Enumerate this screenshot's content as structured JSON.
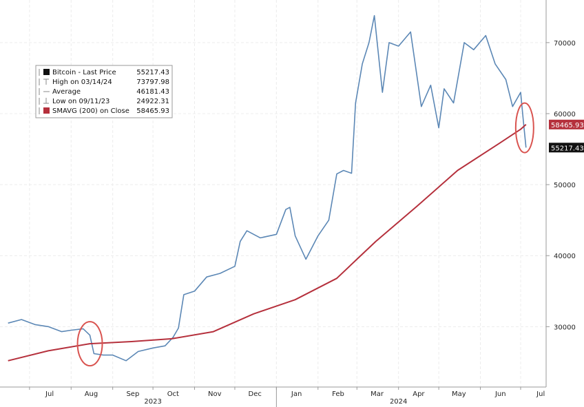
{
  "chart_data": {
    "type": "line",
    "y_ticks": [
      "70000",
      "60000",
      "50000",
      "40000",
      "30000"
    ],
    "y_tick_values": [
      70000,
      60000,
      50000,
      40000,
      30000
    ],
    "ylim": [
      21500,
      76000
    ],
    "x_labels": [
      "Jul",
      "Aug",
      "Sep",
      "Oct",
      "Nov",
      "Dec",
      "Jan",
      "Feb",
      "Mar",
      "Apr",
      "May",
      "Jun",
      "Jul"
    ],
    "x_label_dates": [
      "2023-07-01",
      "2023-08-01",
      "2023-09-01",
      "2023-10-01",
      "2023-11-01",
      "2023-12-01",
      "2024-01-01",
      "2024-02-01",
      "2024-03-01",
      "2024-04-01",
      "2024-05-01",
      "2024-06-01",
      "2024-07-01"
    ],
    "years": [
      "2023",
      "2024"
    ],
    "legend": [
      {
        "label": "Bitcoin - Last Price",
        "value": "55217.43"
      },
      {
        "label": "High on 03/14/24",
        "value": "73797.98"
      },
      {
        "label": "Average",
        "value": "46181.43"
      },
      {
        "label": "Low on 09/11/23",
        "value": "24922.31"
      },
      {
        "label": "SMAVG (200)  on Close",
        "value": "58465.93"
      }
    ],
    "last_price_tag": "55217.43",
    "sma_tag": "58465.93",
    "series": [
      {
        "name": "Bitcoin - Last Price",
        "color": "#5b87b5",
        "x": [
          "2023-06-15",
          "2023-06-25",
          "2023-07-05",
          "2023-07-15",
          "2023-07-25",
          "2023-08-01",
          "2023-08-10",
          "2023-08-15",
          "2023-08-18",
          "2023-08-25",
          "2023-09-01",
          "2023-09-11",
          "2023-09-20",
          "2023-10-01",
          "2023-10-10",
          "2023-10-16",
          "2023-10-20",
          "2023-10-24",
          "2023-11-01",
          "2023-11-10",
          "2023-11-20",
          "2023-12-01",
          "2023-12-05",
          "2023-12-10",
          "2023-12-20",
          "2024-01-01",
          "2024-01-08",
          "2024-01-11",
          "2024-01-15",
          "2024-01-23",
          "2024-02-01",
          "2024-02-09",
          "2024-02-15",
          "2024-02-20",
          "2024-02-26",
          "2024-02-29",
          "2024-03-05",
          "2024-03-10",
          "2024-03-14",
          "2024-03-20",
          "2024-03-25",
          "2024-04-01",
          "2024-04-10",
          "2024-04-18",
          "2024-04-25",
          "2024-05-01",
          "2024-05-05",
          "2024-05-12",
          "2024-05-20",
          "2024-05-27",
          "2024-06-05",
          "2024-06-12",
          "2024-06-20",
          "2024-06-25",
          "2024-07-01",
          "2024-07-03",
          "2024-07-05"
        ],
        "values": [
          30500,
          31000,
          30300,
          30000,
          29300,
          29500,
          29700,
          28800,
          26200,
          26000,
          26000,
          25200,
          26500,
          27000,
          27300,
          28500,
          29800,
          34500,
          35000,
          37000,
          37500,
          38500,
          42000,
          43500,
          42500,
          43000,
          46500,
          46800,
          42800,
          39500,
          42800,
          45000,
          51500,
          52000,
          51600,
          61500,
          67000,
          70000,
          73797.98,
          63000,
          70000,
          69500,
          71500,
          61000,
          64000,
          58000,
          63500,
          61500,
          70000,
          69000,
          71000,
          67000,
          64800,
          61000,
          63000,
          59000,
          55217.43
        ]
      },
      {
        "name": "SMAVG (200)  on Close",
        "color": "#b5303c",
        "x": [
          "2023-06-15",
          "2023-07-15",
          "2023-08-15",
          "2023-09-15",
          "2023-10-15",
          "2023-11-15",
          "2023-12-15",
          "2024-01-15",
          "2024-02-15",
          "2024-03-01",
          "2024-03-15",
          "2024-04-15",
          "2024-05-15",
          "2024-06-15",
          "2024-07-01",
          "2024-07-05"
        ],
        "values": [
          25200,
          26600,
          27600,
          27900,
          28300,
          29300,
          31800,
          33800,
          36800,
          39500,
          42000,
          47000,
          52000,
          55800,
          57800,
          58465.93
        ]
      }
    ]
  },
  "colors": {
    "price": "#5b87b5",
    "sma": "#b5303c",
    "highlight": "#d9534f"
  }
}
